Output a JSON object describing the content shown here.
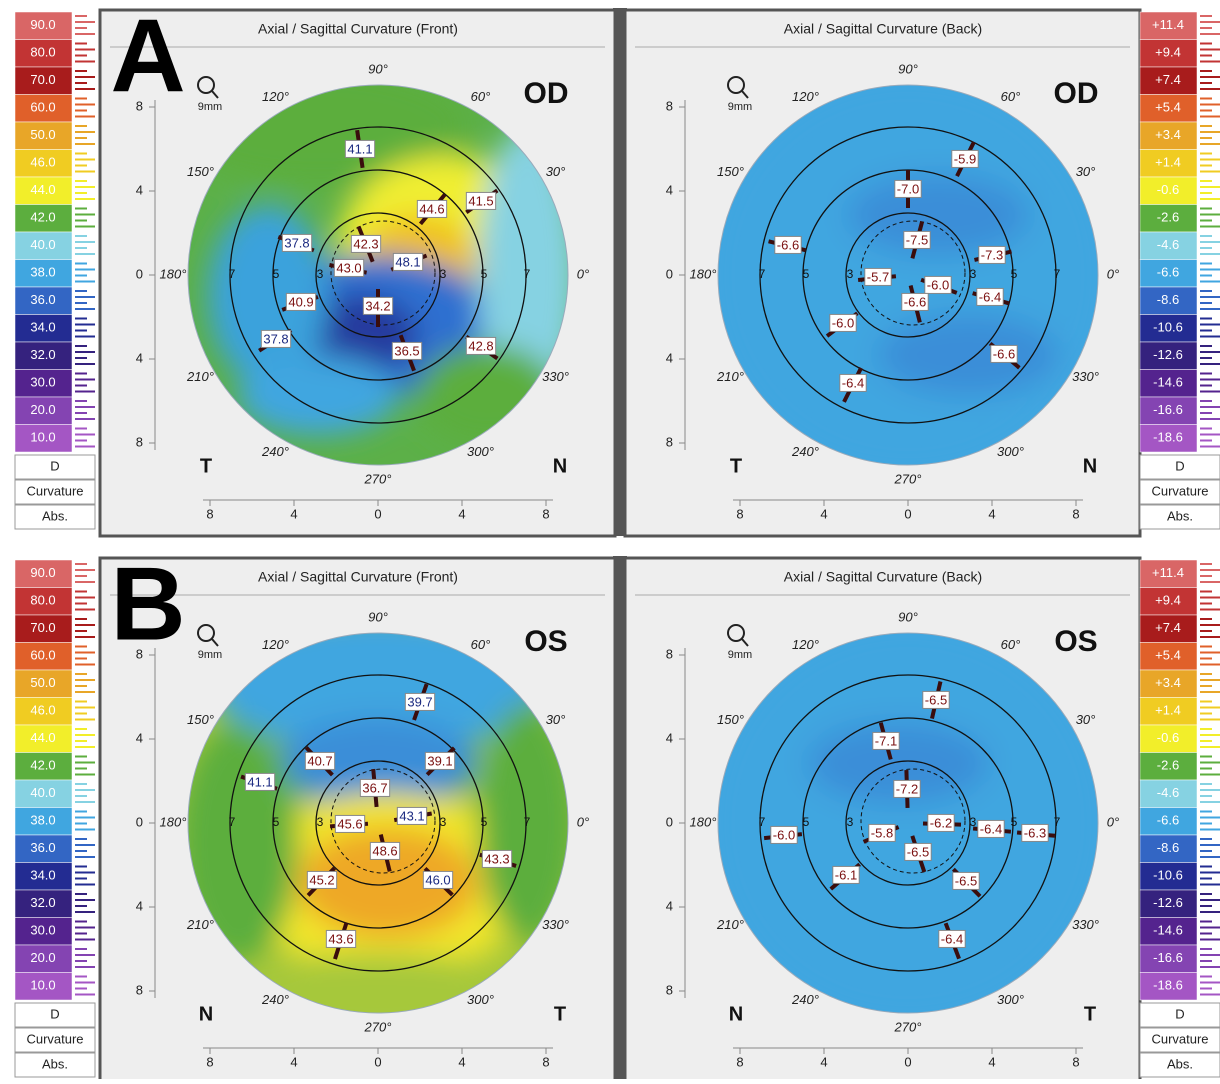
{
  "panels": [
    {
      "label": "A",
      "front": {
        "title": "Axial / Sagittal Curvature (Front)",
        "eye": "OD",
        "zoom": "9mm",
        "left_letter": "T",
        "right_letter": "N",
        "values": [
          "41.1",
          "44.6",
          "41.5",
          "37.8",
          "42.3",
          "43.0",
          "48.1",
          "40.9",
          "34.2",
          "37.8",
          "36.5",
          "42.8"
        ]
      },
      "back": {
        "title": "Axial / Sagittal Curvature (Back)",
        "eye": "OD",
        "zoom": "9mm",
        "left_letter": "T",
        "right_letter": "N",
        "values": [
          "-5.9",
          "-7.0",
          "-6.6",
          "-7.5",
          "-7.3",
          "-5.7",
          "-6.0",
          "-6.6",
          "-6.4",
          "-6.0",
          "-6.6",
          "-6.4"
        ]
      }
    },
    {
      "label": "B",
      "front": {
        "title": "Axial / Sagittal Curvature (Front)",
        "eye": "OS",
        "zoom": "9mm",
        "left_letter": "N",
        "right_letter": "T",
        "values": [
          "39.7",
          "40.7",
          "39.1",
          "41.1",
          "36.7",
          "45.6",
          "43.1",
          "48.6",
          "45.2",
          "46.0",
          "43.3",
          "43.6"
        ]
      },
      "back": {
        "title": "Axial / Sagittal Curvature (Back)",
        "eye": "OS",
        "zoom": "9mm",
        "left_letter": "N",
        "right_letter": "T",
        "values": [
          "-6.5",
          "-7.1",
          "-7.2",
          "-6.0",
          "-5.8",
          "-6.2",
          "-6.4",
          "-6.3",
          "-6.5",
          "-6.1",
          "-6.5",
          "-6.4"
        ]
      }
    }
  ],
  "front_scale": {
    "labels": [
      "90.0",
      "80.0",
      "70.0",
      "60.0",
      "50.0",
      "46.0",
      "44.0",
      "42.0",
      "40.0",
      "38.0",
      "36.0",
      "34.0",
      "32.0",
      "30.0",
      "20.0",
      "10.0"
    ],
    "footer": [
      "D",
      "Curvature",
      "Abs."
    ]
  },
  "back_scale": {
    "labels": [
      "+11.4",
      "+9.4",
      "+7.4",
      "+5.4",
      "+3.4",
      "+1.4",
      "-0.6",
      "-2.6",
      "-4.6",
      "-6.6",
      "-8.6",
      "-10.6",
      "-12.6",
      "-14.6",
      "-16.6",
      "-18.6"
    ],
    "footer": [
      "D",
      "Curvature",
      "Abs."
    ]
  },
  "angles": [
    "0°",
    "30°",
    "60°",
    "90°",
    "120°",
    "150°",
    "180°",
    "210°",
    "240°",
    "270°",
    "300°",
    "330°"
  ],
  "ring_labels": [
    "7",
    "5",
    "3",
    "3",
    "5",
    "7"
  ],
  "y_ticks": [
    "8",
    "4",
    "0",
    "4",
    "8"
  ],
  "x_ticks": [
    "8",
    "4",
    "0",
    "4",
    "8"
  ]
}
